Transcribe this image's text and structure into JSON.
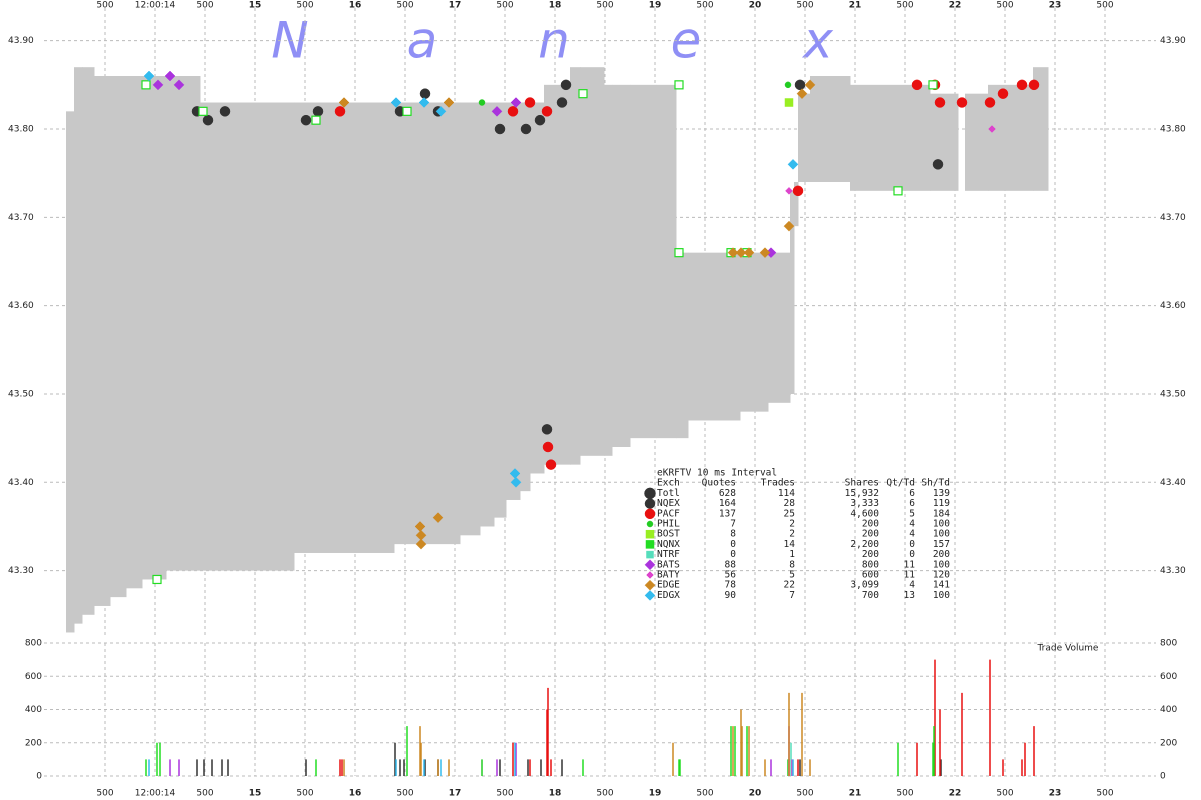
{
  "chart_data": {
    "type": "nbbo",
    "watermark": [
      "N",
      "a",
      "n",
      "e",
      "x"
    ],
    "xlim": [
      13.03,
      23.93
    ],
    "xticks": [
      {
        "value": 13.5,
        "label": "500"
      },
      {
        "value": 14,
        "label": "12:00:14"
      },
      {
        "value": 14.5,
        "label": "500"
      },
      15,
      {
        "value": 15.5,
        "label": "500"
      },
      16,
      {
        "value": 16.5,
        "label": "500"
      },
      17,
      {
        "value": 17.5,
        "label": "500"
      },
      18,
      {
        "value": 18.5,
        "label": "500"
      },
      19,
      {
        "value": 19.5,
        "label": "500"
      },
      20,
      {
        "value": 20.5,
        "label": "500"
      },
      21,
      {
        "value": 21.5,
        "label": "500"
      },
      22,
      {
        "value": 22.5,
        "label": "500"
      },
      23,
      {
        "value": 23.5,
        "label": "500"
      }
    ],
    "ylim": [
      43.226,
      43.937
    ],
    "yticks": [
      {
        "value": 43.3,
        "label": "43.30"
      },
      {
        "value": 43.4,
        "label": "43.40"
      },
      {
        "value": 43.5,
        "label": "43.50"
      },
      {
        "value": 43.6,
        "label": "43.60"
      },
      {
        "value": 43.7,
        "label": "43.70"
      },
      {
        "value": 43.8,
        "label": "43.80"
      },
      {
        "value": 43.9,
        "label": "43.90"
      }
    ],
    "grid": true,
    "band": {
      "color": "#c8c8c8",
      "x": [
        13.11,
        13.19,
        13.27,
        13.39,
        13.55,
        13.71,
        13.87,
        14.11,
        14.45,
        15.39,
        16.39,
        17.05,
        17.25,
        17.39,
        17.51,
        17.65,
        17.75,
        17.89,
        18.15,
        18.25,
        18.49,
        18.57,
        18.75,
        19.01,
        19.21,
        19.33,
        19.85,
        20.13,
        20.35,
        20.39,
        20.43,
        20.55,
        20.95,
        21.75,
        22.03,
        22.1,
        22.33,
        22.78,
        22.93
      ],
      "high": [
        43.82,
        43.87,
        43.87,
        43.86,
        43.86,
        43.86,
        43.86,
        43.86,
        43.83,
        43.83,
        43.83,
        43.83,
        43.83,
        43.83,
        43.83,
        43.83,
        43.83,
        43.85,
        43.87,
        43.87,
        43.85,
        43.85,
        43.85,
        43.85,
        43.66,
        43.66,
        43.66,
        43.66,
        43.73,
        43.74,
        43.84,
        43.86,
        43.85,
        43.84,
        null,
        43.84,
        43.85,
        43.87,
        null
      ],
      "low": [
        43.23,
        43.24,
        43.25,
        43.26,
        43.27,
        43.28,
        43.29,
        43.3,
        43.3,
        43.32,
        43.33,
        43.34,
        43.35,
        43.36,
        43.38,
        43.39,
        43.41,
        43.42,
        43.42,
        43.43,
        43.43,
        43.44,
        43.45,
        43.45,
        43.45,
        43.47,
        43.48,
        43.49,
        43.5,
        43.69,
        43.74,
        43.74,
        43.73,
        43.73,
        null,
        43.73,
        43.73,
        43.73,
        null
      ]
    },
    "volume": {
      "title": "Trade Volume",
      "ylim": [
        0,
        800
      ],
      "yticks": [
        0,
        200,
        400,
        600,
        800
      ]
    },
    "legend_title": "eKRFTV 10 ms Interval",
    "columns": [
      "Exch",
      "Quotes",
      "Trades",
      "Shares",
      "Qt/Td",
      "Sh/Td"
    ],
    "exchanges": [
      {
        "name": "Totl",
        "color": "#333333",
        "shape": "circle",
        "quotes": "628",
        "trades": "114",
        "shares": "15,932",
        "qt_td": "6",
        "sh_td": "139",
        "x": [],
        "y": [],
        "vol_x": [],
        "vol_values": []
      },
      {
        "name": "NQEX",
        "color": "#333333",
        "shape": "circle",
        "quotes": "164",
        "trades": "28",
        "shares": "3,333",
        "qt_td": "6",
        "sh_td": "119",
        "x": [
          14.42,
          14.53,
          14.7,
          15.51,
          15.63,
          16.45,
          16.7,
          16.83,
          17.45,
          17.71,
          17.85,
          18.07,
          18.11,
          17.92,
          20.45,
          21.83
        ],
        "y": [
          43.82,
          43.81,
          43.82,
          43.81,
          43.82,
          43.82,
          43.84,
          43.82,
          43.8,
          43.8,
          43.81,
          43.83,
          43.85,
          43.46,
          43.85,
          43.76
        ],
        "vol_x": [
          14.42,
          14.49,
          14.57,
          14.67,
          14.73,
          15.51,
          16.4,
          16.45,
          16.49,
          16.7,
          16.83,
          17.45,
          17.73,
          17.86,
          18.07,
          20.45,
          21.86
        ],
        "vol_values": [
          100,
          100,
          100,
          100,
          100,
          100,
          200,
          100,
          100,
          100,
          100,
          100,
          100,
          100,
          100,
          100,
          100
        ]
      },
      {
        "name": "PACF",
        "color": "#e81010",
        "shape": "circle",
        "quotes": "137",
        "trades": "25",
        "shares": "4,600",
        "qt_td": "5",
        "sh_td": "184",
        "x": [
          15.85,
          17.58,
          17.75,
          17.92,
          17.93,
          17.96,
          20.43,
          21.62,
          21.8,
          21.85,
          22.07,
          22.35,
          22.48,
          22.67,
          22.79
        ],
        "y": [
          43.82,
          43.82,
          43.83,
          43.82,
          43.44,
          43.42,
          43.73,
          43.85,
          43.85,
          43.83,
          43.83,
          43.83,
          43.84,
          43.85,
          43.85
        ],
        "vol_x": [
          15.85,
          15.87,
          17.58,
          17.75,
          17.92,
          17.93,
          17.96,
          20.43,
          21.62,
          21.8,
          21.85,
          22.07,
          22.35,
          22.48,
          22.67,
          22.7,
          22.79
        ],
        "vol_values": [
          100,
          100,
          200,
          100,
          400,
          530,
          100,
          100,
          200,
          700,
          400,
          500,
          700,
          100,
          100,
          200,
          300
        ]
      },
      {
        "name": "PHIL",
        "color": "#22cc22",
        "shape": "dot",
        "quotes": "7",
        "trades": "2",
        "shares": "200",
        "qt_td": "4",
        "sh_td": "100",
        "x": [
          17.27,
          20.33
        ],
        "y": [
          43.83,
          43.85
        ],
        "vol_x": [
          17.27,
          20.33
        ],
        "vol_values": [
          100,
          100
        ]
      },
      {
        "name": "BOST",
        "color": "#99ee22",
        "shape": "square",
        "quotes": "8",
        "trades": "2",
        "shares": "200",
        "qt_td": "4",
        "sh_td": "100",
        "x": [
          20.34
        ],
        "y": [
          43.83
        ],
        "vol_x": [
          20.34
        ],
        "vol_values": [
          100
        ]
      },
      {
        "name": "NQNX",
        "color": "#22dd22",
        "shape": "square",
        "hollow": true,
        "quotes": "0",
        "trades": "14",
        "shares": "2,200",
        "qt_td": "0",
        "sh_td": "157",
        "x": [
          13.91,
          14.48,
          15.61,
          16.52,
          18.28,
          19.24,
          19.24,
          19.76,
          19.92,
          21.43,
          14.02,
          21.78
        ],
        "y": [
          43.85,
          43.82,
          43.81,
          43.82,
          43.84,
          43.85,
          43.66,
          43.66,
          43.66,
          43.73,
          43.29,
          43.85
        ],
        "vol_x": [
          13.91,
          14.02,
          14.05,
          15.61,
          16.52,
          18.28,
          19.24,
          19.25,
          19.76,
          19.8,
          19.92,
          21.43,
          21.78,
          21.79
        ],
        "vol_values": [
          100,
          200,
          200,
          100,
          300,
          100,
          100,
          100,
          300,
          300,
          300,
          200,
          200,
          300
        ]
      },
      {
        "name": "NTRF",
        "color": "#55ddbb",
        "shape": "square",
        "quotes": "0",
        "trades": "1",
        "shares": "200",
        "qt_td": "0",
        "sh_td": "200",
        "x": [],
        "y": [],
        "vol_x": [
          20.36
        ],
        "vol_values": [
          200
        ]
      },
      {
        "name": "BATS",
        "color": "#aa33dd",
        "shape": "diamond",
        "quotes": "88",
        "trades": "8",
        "shares": "800",
        "qt_td": "11",
        "sh_td": "100",
        "x": [
          14.03,
          14.15,
          14.24,
          17.42,
          17.61,
          20.16
        ],
        "y": [
          43.85,
          43.86,
          43.85,
          43.82,
          43.83,
          43.66
        ],
        "vol_x": [
          14.15,
          14.24,
          17.42,
          17.61,
          20.16,
          20.34
        ],
        "vol_values": [
          100,
          100,
          100,
          200,
          100,
          300
        ]
      },
      {
        "name": "BATY",
        "color": "#dd44cc",
        "shape": "diamond",
        "quotes": "56",
        "trades": "5",
        "shares": "600",
        "qt_td": "11",
        "sh_td": "120",
        "x": [
          20.34,
          20.37,
          22.37
        ],
        "y": [
          43.73,
          43.76,
          43.8
        ],
        "vol_x": [
          20.34,
          20.37
        ],
        "vol_values": [
          100,
          100
        ]
      },
      {
        "name": "EDGE",
        "color": "#cc8822",
        "shape": "diamond",
        "quotes": "78",
        "trades": "22",
        "shares": "3,099",
        "qt_td": "4",
        "sh_td": "141",
        "x": [
          15.89,
          16.65,
          16.66,
          16.66,
          16.83,
          16.94,
          19.78,
          19.86,
          19.94,
          20.1,
          20.34,
          20.47,
          20.55
        ],
        "y": [
          43.83,
          43.35,
          43.34,
          43.33,
          43.36,
          43.83,
          43.66,
          43.66,
          43.66,
          43.66,
          43.69,
          43.84,
          43.85
        ],
        "vol_x": [
          15.89,
          16.65,
          16.66,
          16.83,
          16.94,
          19.18,
          19.78,
          19.86,
          19.87,
          19.94,
          20.1,
          20.34,
          20.47,
          20.55
        ],
        "vol_values": [
          100,
          300,
          200,
          100,
          100,
          200,
          300,
          400,
          300,
          300,
          100,
          500,
          500,
          100
        ]
      },
      {
        "name": "EDGX",
        "color": "#33bbee",
        "shape": "diamond",
        "quotes": "90",
        "trades": "7",
        "shares": "700",
        "qt_td": "13",
        "sh_td": "100",
        "x": [
          13.94,
          16.41,
          16.69,
          16.86,
          17.6,
          17.61,
          20.38
        ],
        "y": [
          43.86,
          43.83,
          43.83,
          43.82,
          43.41,
          43.4,
          43.76
        ],
        "vol_x": [
          13.94,
          16.41,
          16.69,
          16.86,
          17.6,
          20.38
        ],
        "vol_values": [
          100,
          100,
          100,
          100,
          200,
          100
        ]
      }
    ]
  }
}
